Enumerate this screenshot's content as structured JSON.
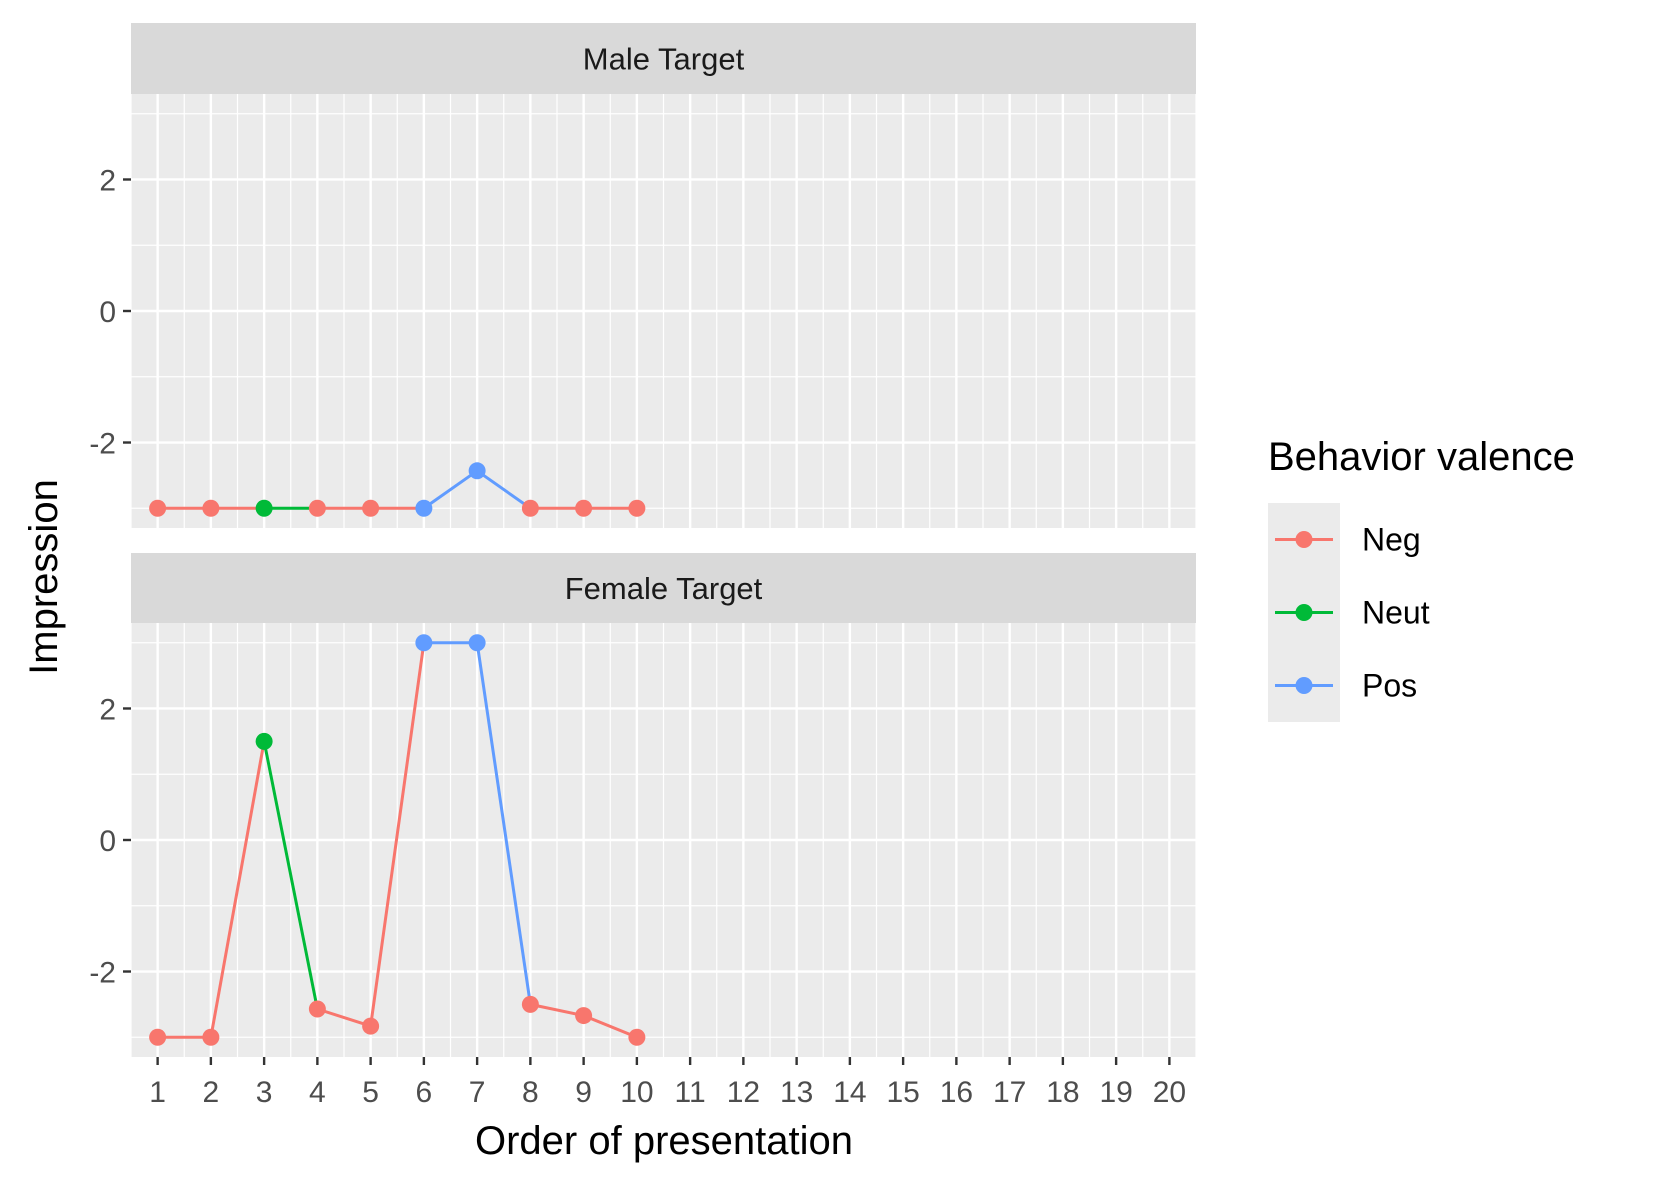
{
  "chart_data": {
    "type": "line",
    "xlabel": "Order of presentation",
    "ylabel": "Impression",
    "x_ticks": [
      1,
      2,
      3,
      4,
      5,
      6,
      7,
      8,
      9,
      10,
      11,
      12,
      13,
      14,
      15,
      16,
      17,
      18,
      19,
      20
    ],
    "xlim": [
      0.5,
      20.5
    ],
    "ylim": [
      -3.3,
      3.3
    ],
    "y_ticks": [
      -2,
      0,
      2
    ],
    "y_tick_labels": [
      "-2",
      "0",
      "2"
    ],
    "grid": true,
    "legend": {
      "title": "Behavior valence",
      "position": "right",
      "entries": [
        {
          "label": "Neg",
          "color": "#F8766D"
        },
        {
          "label": "Neut",
          "color": "#00BA38"
        },
        {
          "label": "Pos",
          "color": "#619CFF"
        }
      ]
    },
    "panels": [
      {
        "strip": "Male Target",
        "points": [
          {
            "x": 1,
            "y": -3.0,
            "valence": "Neg"
          },
          {
            "x": 2,
            "y": -3.0,
            "valence": "Neg"
          },
          {
            "x": 3,
            "y": -3.0,
            "valence": "Neut"
          },
          {
            "x": 4,
            "y": -3.0,
            "valence": "Neg"
          },
          {
            "x": 5,
            "y": -3.0,
            "valence": "Neg"
          },
          {
            "x": 6,
            "y": -3.0,
            "valence": "Pos"
          },
          {
            "x": 7,
            "y": -2.43,
            "valence": "Pos"
          },
          {
            "x": 8,
            "y": -3.0,
            "valence": "Neg"
          },
          {
            "x": 9,
            "y": -3.0,
            "valence": "Neg"
          },
          {
            "x": 10,
            "y": -3.0,
            "valence": "Neg"
          }
        ]
      },
      {
        "strip": "Female Target",
        "points": [
          {
            "x": 1,
            "y": -3.0,
            "valence": "Neg"
          },
          {
            "x": 2,
            "y": -3.0,
            "valence": "Neg"
          },
          {
            "x": 3,
            "y": 1.5,
            "valence": "Neut"
          },
          {
            "x": 4,
            "y": -2.57,
            "valence": "Neg"
          },
          {
            "x": 5,
            "y": -2.83,
            "valence": "Neg"
          },
          {
            "x": 6,
            "y": 3.0,
            "valence": "Pos"
          },
          {
            "x": 7,
            "y": 3.0,
            "valence": "Pos"
          },
          {
            "x": 8,
            "y": -2.5,
            "valence": "Neg"
          },
          {
            "x": 9,
            "y": -2.67,
            "valence": "Neg"
          },
          {
            "x": 10,
            "y": -3.0,
            "valence": "Neg"
          }
        ]
      }
    ]
  }
}
